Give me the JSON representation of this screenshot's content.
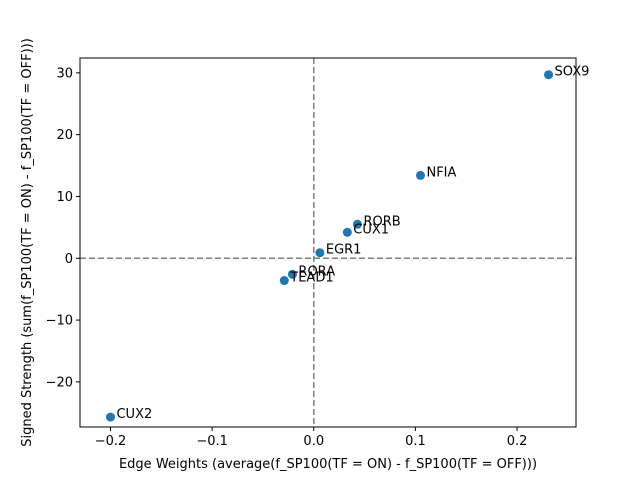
{
  "chart_data": {
    "type": "scatter",
    "title": "",
    "xlabel": "Edge Weights (average(f_SP100(TF = ON) - f_SP100(TF = OFF)))",
    "ylabel": "Signed Strength (sum(f_SP100(TF = ON) - f_SP100(TF = OFF)))",
    "xlim": [
      -0.23,
      0.258
    ],
    "ylim": [
      -27.3,
      32.4
    ],
    "xticks": [
      -0.2,
      -0.1,
      0.0,
      0.1,
      0.2
    ],
    "xtick_labels": [
      "−0.2",
      "−0.1",
      "0.0",
      "0.1",
      "0.2"
    ],
    "yticks": [
      -20,
      -10,
      0,
      10,
      20,
      30
    ],
    "ytick_labels": [
      "−20",
      "−10",
      "0",
      "10",
      "20",
      "30"
    ],
    "grid": false,
    "reference_lines": {
      "x": 0,
      "y": 0,
      "style": "dashed",
      "color": "#808080"
    },
    "marker_color": "#1f77b4",
    "points": [
      {
        "label": "SOX9",
        "x": 0.231,
        "y": 29.7
      },
      {
        "label": "NFIA",
        "x": 0.105,
        "y": 13.4
      },
      {
        "label": "RORB",
        "x": 0.043,
        "y": 5.5
      },
      {
        "label": "CUX1",
        "x": 0.033,
        "y": 4.2
      },
      {
        "label": "EGR1",
        "x": 0.006,
        "y": 0.9
      },
      {
        "label": "RORA",
        "x": -0.021,
        "y": -2.6
      },
      {
        "label": "TEAD1",
        "x": -0.029,
        "y": -3.6
      },
      {
        "label": "CUX2",
        "x": -0.2,
        "y": -25.7
      }
    ]
  }
}
